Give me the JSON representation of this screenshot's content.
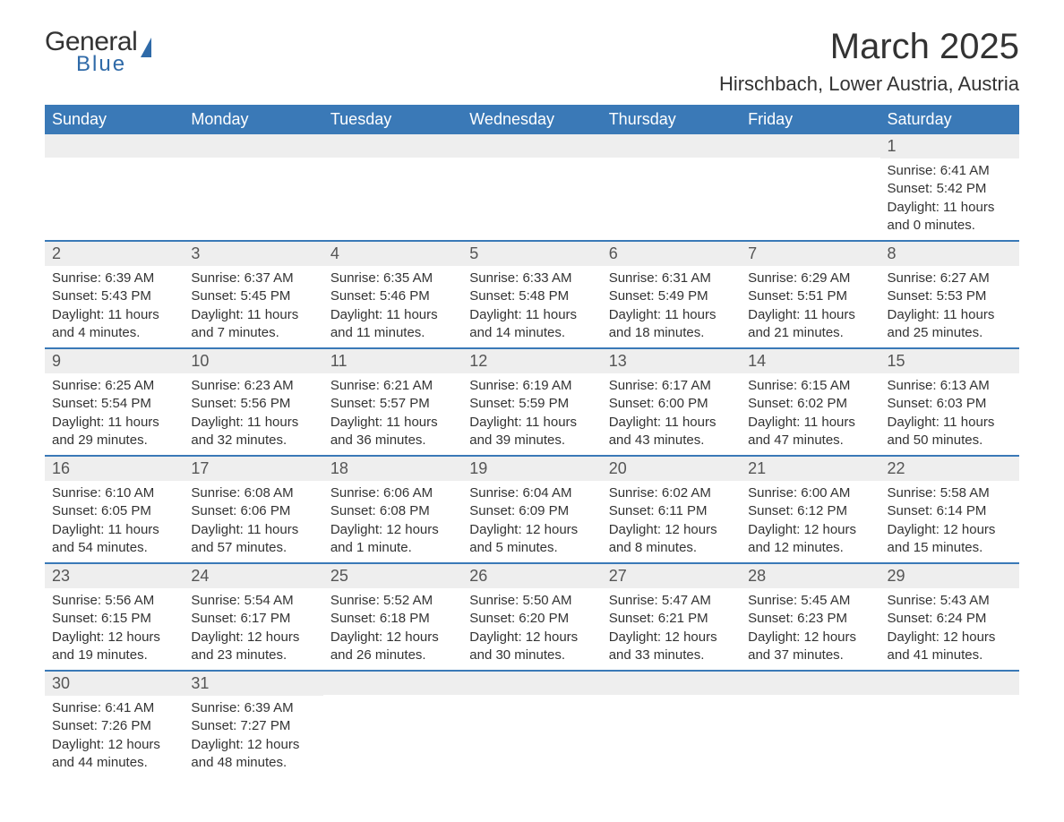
{
  "logo": {
    "text1": "General",
    "text2": "Blue"
  },
  "title": "March 2025",
  "location": "Hirschbach, Lower Austria, Austria",
  "colors": {
    "header_bg": "#3a79b7",
    "header_fg": "#ffffff",
    "row_separator": "#3a79b7",
    "daynum_bg": "#eeeeee",
    "text": "#333333",
    "logo_accent": "#2f6aa8"
  },
  "day_headers": [
    "Sunday",
    "Monday",
    "Tuesday",
    "Wednesday",
    "Thursday",
    "Friday",
    "Saturday"
  ],
  "weeks": [
    [
      null,
      null,
      null,
      null,
      null,
      null,
      {
        "n": "1",
        "sunrise": "6:41 AM",
        "sunset": "5:42 PM",
        "daylight": "11 hours and 0 minutes."
      }
    ],
    [
      {
        "n": "2",
        "sunrise": "6:39 AM",
        "sunset": "5:43 PM",
        "daylight": "11 hours and 4 minutes."
      },
      {
        "n": "3",
        "sunrise": "6:37 AM",
        "sunset": "5:45 PM",
        "daylight": "11 hours and 7 minutes."
      },
      {
        "n": "4",
        "sunrise": "6:35 AM",
        "sunset": "5:46 PM",
        "daylight": "11 hours and 11 minutes."
      },
      {
        "n": "5",
        "sunrise": "6:33 AM",
        "sunset": "5:48 PM",
        "daylight": "11 hours and 14 minutes."
      },
      {
        "n": "6",
        "sunrise": "6:31 AM",
        "sunset": "5:49 PM",
        "daylight": "11 hours and 18 minutes."
      },
      {
        "n": "7",
        "sunrise": "6:29 AM",
        "sunset": "5:51 PM",
        "daylight": "11 hours and 21 minutes."
      },
      {
        "n": "8",
        "sunrise": "6:27 AM",
        "sunset": "5:53 PM",
        "daylight": "11 hours and 25 minutes."
      }
    ],
    [
      {
        "n": "9",
        "sunrise": "6:25 AM",
        "sunset": "5:54 PM",
        "daylight": "11 hours and 29 minutes."
      },
      {
        "n": "10",
        "sunrise": "6:23 AM",
        "sunset": "5:56 PM",
        "daylight": "11 hours and 32 minutes."
      },
      {
        "n": "11",
        "sunrise": "6:21 AM",
        "sunset": "5:57 PM",
        "daylight": "11 hours and 36 minutes."
      },
      {
        "n": "12",
        "sunrise": "6:19 AM",
        "sunset": "5:59 PM",
        "daylight": "11 hours and 39 minutes."
      },
      {
        "n": "13",
        "sunrise": "6:17 AM",
        "sunset": "6:00 PM",
        "daylight": "11 hours and 43 minutes."
      },
      {
        "n": "14",
        "sunrise": "6:15 AM",
        "sunset": "6:02 PM",
        "daylight": "11 hours and 47 minutes."
      },
      {
        "n": "15",
        "sunrise": "6:13 AM",
        "sunset": "6:03 PM",
        "daylight": "11 hours and 50 minutes."
      }
    ],
    [
      {
        "n": "16",
        "sunrise": "6:10 AM",
        "sunset": "6:05 PM",
        "daylight": "11 hours and 54 minutes."
      },
      {
        "n": "17",
        "sunrise": "6:08 AM",
        "sunset": "6:06 PM",
        "daylight": "11 hours and 57 minutes."
      },
      {
        "n": "18",
        "sunrise": "6:06 AM",
        "sunset": "6:08 PM",
        "daylight": "12 hours and 1 minute."
      },
      {
        "n": "19",
        "sunrise": "6:04 AM",
        "sunset": "6:09 PM",
        "daylight": "12 hours and 5 minutes."
      },
      {
        "n": "20",
        "sunrise": "6:02 AM",
        "sunset": "6:11 PM",
        "daylight": "12 hours and 8 minutes."
      },
      {
        "n": "21",
        "sunrise": "6:00 AM",
        "sunset": "6:12 PM",
        "daylight": "12 hours and 12 minutes."
      },
      {
        "n": "22",
        "sunrise": "5:58 AM",
        "sunset": "6:14 PM",
        "daylight": "12 hours and 15 minutes."
      }
    ],
    [
      {
        "n": "23",
        "sunrise": "5:56 AM",
        "sunset": "6:15 PM",
        "daylight": "12 hours and 19 minutes."
      },
      {
        "n": "24",
        "sunrise": "5:54 AM",
        "sunset": "6:17 PM",
        "daylight": "12 hours and 23 minutes."
      },
      {
        "n": "25",
        "sunrise": "5:52 AM",
        "sunset": "6:18 PM",
        "daylight": "12 hours and 26 minutes."
      },
      {
        "n": "26",
        "sunrise": "5:50 AM",
        "sunset": "6:20 PM",
        "daylight": "12 hours and 30 minutes."
      },
      {
        "n": "27",
        "sunrise": "5:47 AM",
        "sunset": "6:21 PM",
        "daylight": "12 hours and 33 minutes."
      },
      {
        "n": "28",
        "sunrise": "5:45 AM",
        "sunset": "6:23 PM",
        "daylight": "12 hours and 37 minutes."
      },
      {
        "n": "29",
        "sunrise": "5:43 AM",
        "sunset": "6:24 PM",
        "daylight": "12 hours and 41 minutes."
      }
    ],
    [
      {
        "n": "30",
        "sunrise": "6:41 AM",
        "sunset": "7:26 PM",
        "daylight": "12 hours and 44 minutes."
      },
      {
        "n": "31",
        "sunrise": "6:39 AM",
        "sunset": "7:27 PM",
        "daylight": "12 hours and 48 minutes."
      },
      null,
      null,
      null,
      null,
      null
    ]
  ],
  "labels": {
    "sunrise": "Sunrise: ",
    "sunset": "Sunset: ",
    "daylight": "Daylight: "
  }
}
